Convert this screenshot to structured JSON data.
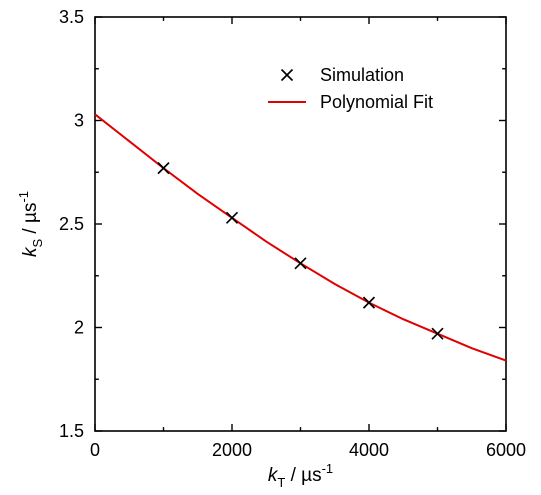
{
  "chart_data": {
    "type": "scatter",
    "title": "",
    "xlabel": {
      "symbol": "k",
      "subscript": "T",
      "unit_base": " / µs",
      "unit_sup": "-1"
    },
    "ylabel": {
      "symbol": "k",
      "subscript": "S",
      "unit_base": " / µs",
      "unit_sup": "-1"
    },
    "xlim": [
      0,
      6000
    ],
    "ylim": [
      1.5,
      3.5
    ],
    "xticks": [
      0,
      2000,
      4000,
      6000
    ],
    "xtick_labels": [
      "0",
      "2000",
      "4000",
      "6000"
    ],
    "yticks": [
      1.5,
      2,
      2.5,
      3,
      3.5
    ],
    "ytick_labels": [
      "1.5",
      "2",
      "2.5",
      "3",
      "3.5"
    ],
    "grid": false,
    "legend_position": "top-right",
    "series": [
      {
        "name": "Simulation",
        "kind": "markers",
        "marker": "x",
        "color": "#000000",
        "x": [
          1000,
          2000,
          3000,
          4000,
          5000
        ],
        "y": [
          2.77,
          2.53,
          2.31,
          2.12,
          1.97
        ]
      },
      {
        "name": "Polynomial Fit",
        "kind": "line",
        "color": "#e00000",
        "x": [
          0,
          500,
          1000,
          1500,
          2000,
          2500,
          3000,
          3500,
          4000,
          4500,
          5000,
          5500,
          6000
        ],
        "y": [
          3.03,
          2.9,
          2.77,
          2.645,
          2.53,
          2.415,
          2.31,
          2.21,
          2.12,
          2.04,
          1.97,
          1.9,
          1.84
        ]
      }
    ]
  }
}
